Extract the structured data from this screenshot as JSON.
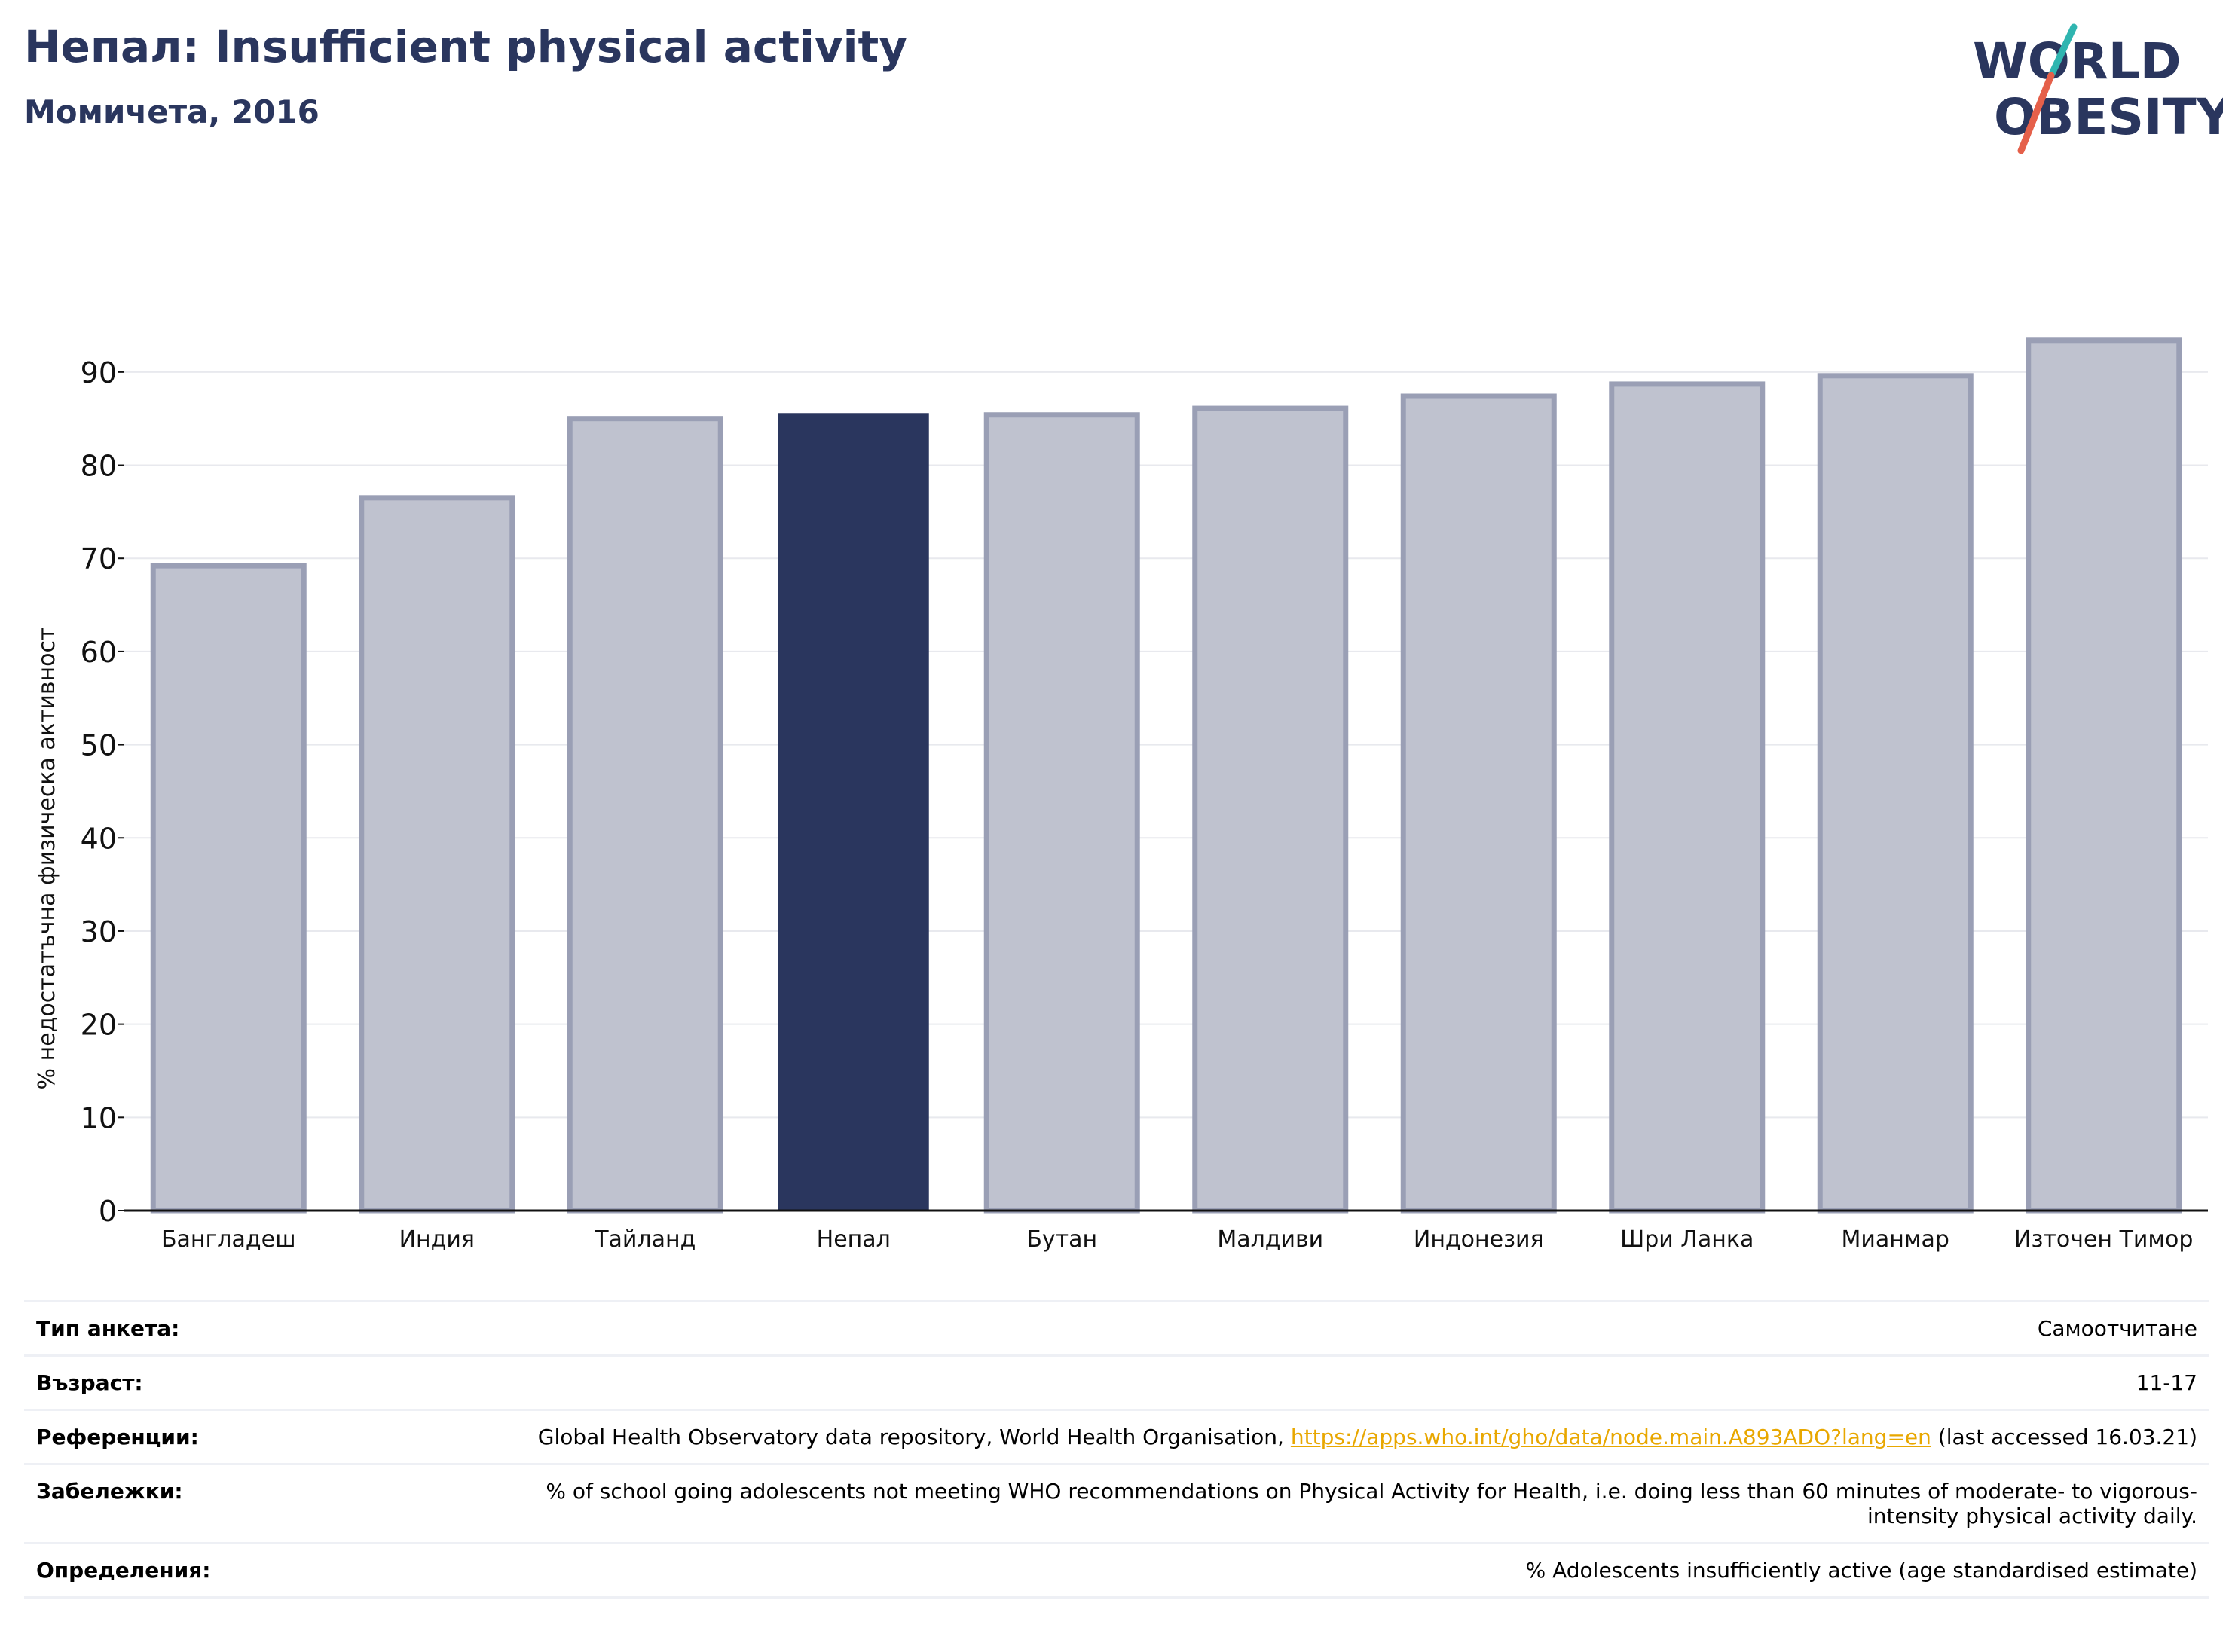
{
  "header": {
    "title": "Непал: Insufficient physical activity",
    "subtitle": "Момичета, 2016"
  },
  "logo": {
    "line1": "WORLD",
    "line2": "OBESITY",
    "text_color": "#2a365e",
    "slash_colors": [
      "#2fb5b0",
      "#e5604a"
    ]
  },
  "colors": {
    "highlight": "#2a365e",
    "bar_fill": "#bfc2cf",
    "bar_stroke": "#9a9fb5",
    "grid": "#e8e9ee"
  },
  "chart_data": {
    "type": "bar",
    "ylabel": "% недостатъчна физическа активност",
    "ylim": [
      0,
      95
    ],
    "yticks": [
      0,
      10,
      20,
      30,
      40,
      50,
      60,
      70,
      80,
      90
    ],
    "grid": true,
    "highlight_category": "Непал",
    "categories": [
      "Бангладеш",
      "Индия",
      "Тайланд",
      "Непал",
      "Бутан",
      "Малдиви",
      "Индонезия",
      "Шри Ланка",
      "Мианмар",
      "Източен Тимор"
    ],
    "values": [
      69.2,
      76.5,
      85.0,
      85.6,
      85.4,
      86.1,
      87.4,
      88.7,
      89.6,
      93.4
    ]
  },
  "meta": {
    "survey_label": "Тип анкета:",
    "survey_value": "Самоотчитане",
    "age_label": "Възраст:",
    "age_value": "11-17",
    "references_label": "Референции:",
    "references_text": "Global Health Observatory data repository, World Health Organisation,",
    "references_link": "https://apps.who.int/gho/data/node.main.A893ADO?lang=en",
    "references_suffix": "(last accessed 16.03.21)",
    "notes_label": "Забележки:",
    "notes_value": "% of school going adolescents not meeting WHO recommendations on Physical Activity for Health, i.e. doing less than 60 minutes of moderate- to vigorous-intensity physical activity daily.",
    "definitions_label": "Определения:",
    "definitions_value": "% Adolescents insufficiently active (age standardised estimate)"
  }
}
